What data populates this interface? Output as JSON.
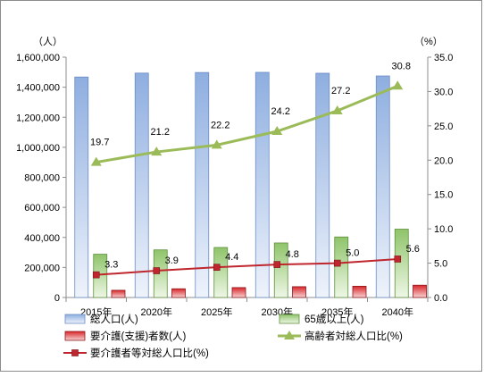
{
  "chart_data": {
    "type": "bar",
    "categories": [
      "2015年",
      "2020年",
      "2025年",
      "2030年",
      "2035年",
      "2040年"
    ],
    "left_axis": {
      "unit": "（人）",
      "ylim": [
        0,
        1600000
      ],
      "ticks": [
        "0",
        "200,000",
        "400,000",
        "600,000",
        "800,000",
        "1,000,000",
        "1,200,000",
        "1,400,000",
        "1,600,000"
      ]
    },
    "right_axis": {
      "unit": "（%）",
      "ylim": [
        0,
        35
      ],
      "ticks": [
        "0.0",
        "5.0",
        "10.0",
        "15.0",
        "20.0",
        "25.0",
        "30.0",
        "35.0"
      ]
    },
    "series": [
      {
        "name": "総人口(人)",
        "kind": "bar",
        "axis": "left",
        "color": "#8eaee0",
        "values": [
          1468000,
          1494000,
          1498000,
          1499000,
          1493000,
          1475000
        ]
      },
      {
        "name": "65歳以上(人)",
        "kind": "bar",
        "axis": "left",
        "color": "#8fc46a",
        "values": [
          288000,
          317000,
          333000,
          363000,
          403000,
          455000
        ]
      },
      {
        "name": "要介護(支援)者数(人)",
        "kind": "bar",
        "axis": "left",
        "color": "#d9262a",
        "values": [
          48000,
          58000,
          66000,
          72000,
          75000,
          82000
        ]
      },
      {
        "name": "高齢者対総人口比(%)",
        "kind": "line",
        "axis": "right",
        "color": "#9bbb59",
        "values": [
          19.7,
          21.2,
          22.2,
          24.2,
          27.2,
          30.8
        ],
        "labels": [
          "19.7",
          "21.2",
          "22.2",
          "24.2",
          "27.2",
          "30.8"
        ]
      },
      {
        "name": "要介護者等対総人口比(%)",
        "kind": "line",
        "axis": "right",
        "color": "#c0262d",
        "values": [
          3.3,
          3.9,
          4.4,
          4.8,
          5.0,
          5.6
        ],
        "labels": [
          "3.3",
          "3.9",
          "4.4",
          "4.8",
          "5.0",
          "5.6"
        ]
      }
    ],
    "legend": "bottom",
    "grid": false
  }
}
